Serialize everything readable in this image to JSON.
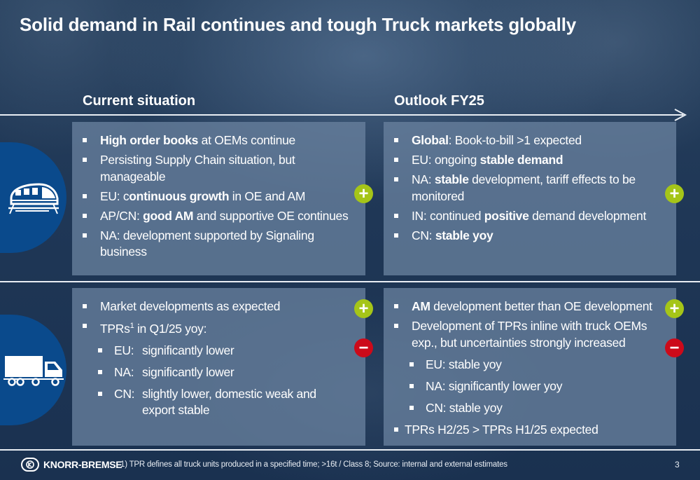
{
  "title": "Solid demand in Rail continues and tough Truck markets globally",
  "columns": {
    "current": "Current situation",
    "outlook": "Outlook FY25"
  },
  "rail": {
    "icon": "train-icon",
    "current": [
      {
        "b": "High order books",
        "t": " at OEMs continue"
      },
      {
        "pre": "Persisting Supply Chain situation, but manageable"
      },
      {
        "pre": "EU: c",
        "b": "ontinuous growth",
        "t": " in OE and AM"
      },
      {
        "pre": "AP/CN: ",
        "b": "good AM",
        "t": " and supportive OE continues"
      },
      {
        "pre": "NA: development supported by Signaling business"
      }
    ],
    "outlook": [
      {
        "b": "Global",
        "t": ": Book-to-bill >1 expected"
      },
      {
        "pre": "EU: ongoing ",
        "b": "stable demand"
      },
      {
        "pre": "NA: ",
        "b": "stable",
        "t": " development, tariff effects to be monitored"
      },
      {
        "pre": "IN: continued ",
        "b": "positive",
        "t": " demand development"
      },
      {
        "pre": "CN: ",
        "b": "stable yoy"
      }
    ]
  },
  "truck": {
    "icon": "truck-icon",
    "current": {
      "item1": "Market developments as expected",
      "item2_pre": "TPRs",
      "item2_sup": "1",
      "item2_post": " in Q1/25 yoy:",
      "subs": [
        {
          "label": "EU:",
          "text": "significantly lower"
        },
        {
          "label": "NA:",
          "text": "significantly lower"
        },
        {
          "label": "CN:",
          "text": "slightly lower, domestic weak and export stable"
        }
      ]
    },
    "outlook": {
      "item1_b": "AM",
      "item1_t": " development better than OE development",
      "item2": "Development of TPRs inline with truck OEMs exp., but uncertainties strongly increased",
      "subs": [
        "EU: stable yoy",
        "NA: significantly lower yoy",
        "CN: stable yoy"
      ],
      "item3": "TPRs H2/25 > TPRs H1/25 expected"
    }
  },
  "badges": {
    "plus": "+",
    "minus": "−"
  },
  "colors": {
    "plus": "#a5c518",
    "minus": "#cc0a1a",
    "icon_bg": "#0a4a8c"
  },
  "footer": {
    "brand": "KNORR-BREMSE",
    "footnote": "1) TPR defines all truck units produced in a specified time; >16t / Class 8; Source: internal and external estimates",
    "page": "3"
  }
}
